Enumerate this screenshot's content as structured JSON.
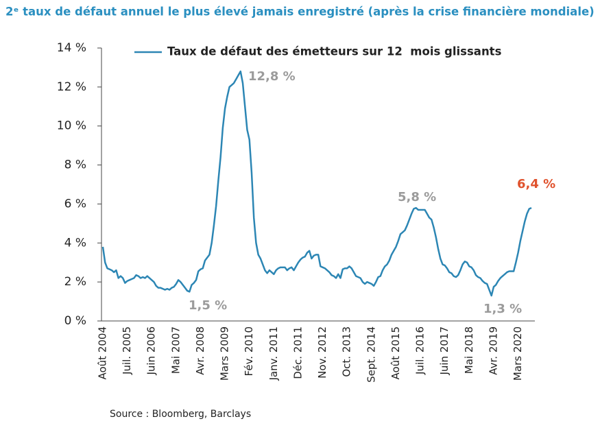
{
  "chart_data": {
    "type": "line",
    "title": "2ᵉ taux de défaut annuel le plus élevé jamais enregistré (après la crise financière mondiale)",
    "source": "Source : Bloomberg, Barclays",
    "categories": [
      "Août 2004",
      null,
      null,
      null,
      null,
      null,
      null,
      null,
      null,
      null,
      null,
      "Juil. 2005",
      null,
      null,
      null,
      null,
      null,
      null,
      null,
      null,
      null,
      null,
      "Juin 2006",
      null,
      null,
      null,
      null,
      null,
      null,
      null,
      null,
      null,
      null,
      "Mai 2007",
      null,
      null,
      null,
      null,
      null,
      null,
      null,
      null,
      null,
      null,
      "Avr. 2008",
      null,
      null,
      null,
      null,
      null,
      null,
      null,
      null,
      null,
      null,
      "Mars 2009",
      null,
      null,
      null,
      null,
      null,
      null,
      null,
      null,
      null,
      null,
      "Fév. 2010",
      null,
      null,
      null,
      null,
      null,
      null,
      null,
      null,
      null,
      null,
      "Janv. 2011",
      null,
      null,
      null,
      null,
      null,
      null,
      null,
      null,
      null,
      null,
      "Déc. 2011",
      null,
      null,
      null,
      null,
      null,
      null,
      null,
      null,
      null,
      null,
      "Nov. 2012",
      null,
      null,
      null,
      null,
      null,
      null,
      null,
      null,
      null,
      null,
      "Oct. 2013",
      null,
      null,
      null,
      null,
      null,
      null,
      null,
      null,
      null,
      null,
      "Sept. 2014",
      null,
      null,
      null,
      null,
      null,
      null,
      null,
      null,
      null,
      null,
      "Août 2015",
      null,
      null,
      null,
      null,
      null,
      null,
      null,
      null,
      null,
      null,
      "Juil. 2016",
      null,
      null,
      null,
      null,
      null,
      null,
      null,
      null,
      null,
      null,
      "Juin 2017",
      null,
      null,
      null,
      null,
      null,
      null,
      null,
      null,
      null,
      null,
      "Mai 2018",
      null,
      null,
      null,
      null,
      null,
      null,
      null,
      null,
      null,
      null,
      "Avr. 2019",
      null,
      null,
      null,
      null,
      null,
      null,
      null,
      null,
      null,
      null,
      "Mars 2020",
      null,
      null,
      null,
      null,
      null,
      null
    ],
    "series": [
      {
        "name": "Taux de défaut des émetteurs sur 12  mois glissants",
        "color": "#2c86b4",
        "values": [
          3.8,
          3.0,
          2.7,
          2.65,
          2.6,
          2.5,
          2.6,
          2.2,
          2.3,
          2.2,
          1.95,
          2.05,
          2.1,
          2.15,
          2.2,
          2.35,
          2.3,
          2.2,
          2.25,
          2.2,
          2.3,
          2.2,
          2.1,
          2.0,
          1.8,
          1.7,
          1.7,
          1.65,
          1.6,
          1.65,
          1.6,
          1.7,
          1.75,
          1.9,
          2.1,
          2.0,
          1.85,
          1.7,
          1.55,
          1.5,
          1.85,
          1.95,
          2.1,
          2.55,
          2.65,
          2.7,
          3.1,
          3.25,
          3.4,
          4.0,
          4.9,
          5.9,
          7.2,
          8.4,
          9.9,
          10.9,
          11.5,
          12.0,
          12.1,
          12.2,
          12.4,
          12.6,
          12.8,
          12.2,
          11.0,
          9.8,
          9.3,
          7.6,
          5.3,
          4.0,
          3.4,
          3.2,
          2.9,
          2.6,
          2.45,
          2.6,
          2.5,
          2.4,
          2.6,
          2.7,
          2.75,
          2.75,
          2.75,
          2.6,
          2.7,
          2.75,
          2.6,
          2.8,
          3.0,
          3.15,
          3.25,
          3.3,
          3.5,
          3.6,
          3.2,
          3.35,
          3.4,
          3.4,
          2.8,
          2.75,
          2.7,
          2.6,
          2.5,
          2.35,
          2.3,
          2.2,
          2.4,
          2.2,
          2.65,
          2.7,
          2.7,
          2.8,
          2.7,
          2.5,
          2.3,
          2.25,
          2.2,
          2.0,
          1.9,
          2.0,
          1.95,
          1.9,
          1.8,
          2.0,
          2.25,
          2.3,
          2.6,
          2.8,
          2.9,
          3.1,
          3.4,
          3.6,
          3.8,
          4.1,
          4.45,
          4.55,
          4.65,
          4.9,
          5.2,
          5.5,
          5.75,
          5.8,
          5.7,
          5.7,
          5.7,
          5.7,
          5.5,
          5.3,
          5.2,
          4.8,
          4.3,
          3.7,
          3.2,
          2.9,
          2.85,
          2.7,
          2.5,
          2.45,
          2.3,
          2.25,
          2.35,
          2.6,
          2.9,
          3.05,
          3.0,
          2.8,
          2.75,
          2.6,
          2.35,
          2.25,
          2.2,
          2.05,
          1.95,
          1.9,
          1.6,
          1.3,
          1.75,
          1.85,
          2.05,
          2.2,
          2.3,
          2.4,
          2.5,
          2.55,
          2.55,
          2.55,
          3.0,
          3.5,
          4.1,
          4.6,
          5.1,
          5.5,
          5.75,
          5.8
        ]
      }
    ],
    "annotations": [
      {
        "text": "12,8 %",
        "color": "#9b9b9b"
      },
      {
        "text": "1,5 %",
        "color": "#9b9b9b"
      },
      {
        "text": "5,8 %",
        "color": "#9b9b9b"
      },
      {
        "text": "1,3 %",
        "color": "#9b9b9b"
      },
      {
        "text": "6,4 %",
        "color": "#e0522d"
      }
    ],
    "ylim": [
      0,
      14
    ],
    "yticks": [
      {
        "value": 0,
        "label": "0 %"
      },
      {
        "value": 2,
        "label": "2 %"
      },
      {
        "value": 4,
        "label": "4 %"
      },
      {
        "value": 6,
        "label": "6 %"
      },
      {
        "value": 8,
        "label": "8 %"
      },
      {
        "value": 10,
        "label": "10 %"
      },
      {
        "value": 12,
        "label": "12 %"
      },
      {
        "value": 14,
        "label": "14 %"
      }
    ],
    "grid": false,
    "legend": "top"
  }
}
